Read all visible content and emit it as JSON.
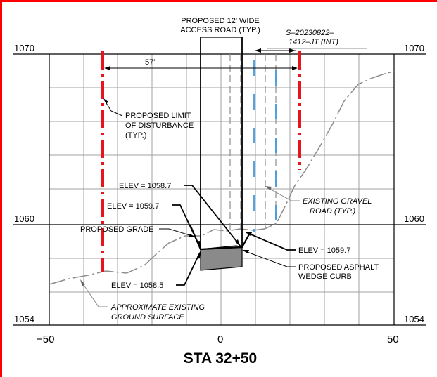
{
  "title": "STA 32+50",
  "colors": {
    "border": "#ff0000",
    "limit_line": "#e8141c",
    "grid": "#a0a0a0",
    "ground": "#8c8c8c",
    "road_dash": "#1a86d6",
    "asphalt": "#8a8a8a"
  },
  "elevations": {
    "top": "1070",
    "mid": "1060",
    "bottom": "1054"
  },
  "stations": {
    "left": "−50",
    "center": "0",
    "right": "50"
  },
  "labels": {
    "road_line1": "PROPOSED 12' WIDE",
    "road_line2": "ACCESS ROAD (TYP.)",
    "sheet_line1": "S–20230822–",
    "sheet_line2": "1412–JT (INT)",
    "dim_57": "57'",
    "lod_line1": "PROPOSED LIMIT",
    "lod_line2": "OF DISTURBANCE",
    "lod_line3": "(TYP.)",
    "elev_1058_7": "ELEV = 1058.7",
    "elev_1059_7_left": "ELEV = 1059.7",
    "grade": "PROPOSED GRADE",
    "elev_1059_7_right": "ELEV = 1059.7",
    "asphalt_line1": "PROPOSED ASPHALT",
    "asphalt_line2": "WEDGE CURB",
    "elev_1058_5": "ELEV = 1058.5",
    "gravel_line1": "EXISTING GRAVEL",
    "gravel_line2": "ROAD (TYP.)",
    "ground_line1": "APPROXIMATE EXISTING",
    "ground_line2": "GROUND SURFACE"
  }
}
